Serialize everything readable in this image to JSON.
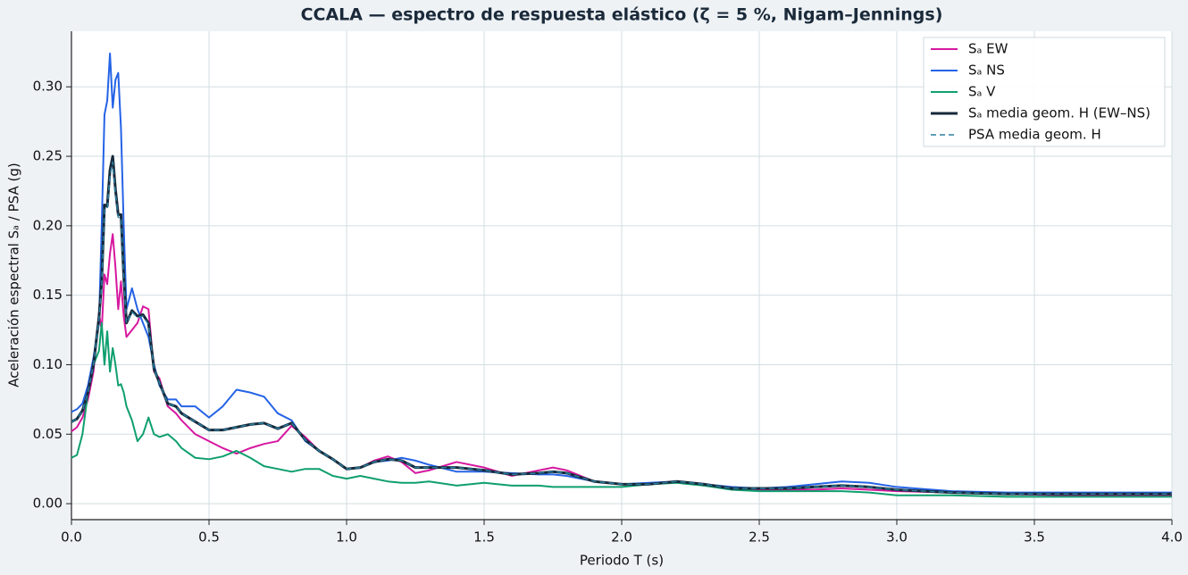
{
  "chart_data": {
    "type": "line",
    "title": "CCALA — espectro de respuesta elástico (ζ = 5 %, Nigam–Jennings)",
    "x_label": "Periodo T (s)",
    "y_label": "Aceleración espectral Sₐ / PSA (g)",
    "xlim": [
      0,
      4
    ],
    "ylim": [
      -0.0115,
      0.34
    ],
    "xticks": [
      {
        "value": 0,
        "label": "0.0"
      },
      0.5,
      {
        "value": 1,
        "label": "1.0"
      },
      1.5,
      {
        "value": 2,
        "label": "2.0"
      },
      2.5,
      {
        "value": 3,
        "label": "3.0"
      },
      3.5,
      {
        "value": 4,
        "label": "4.0"
      }
    ],
    "yticks": [
      {
        "value": 0,
        "label": "0.00"
      },
      0.05,
      {
        "value": 0.1,
        "label": "0.10"
      },
      0.15,
      {
        "value": 0.2,
        "label": "0.20"
      },
      0.25,
      {
        "value": 0.3,
        "label": "0.30"
      }
    ],
    "grid": true,
    "legend": "upper right",
    "x": [
      0,
      0.02,
      0.04,
      0.06,
      0.08,
      0.1,
      0.11,
      0.12,
      0.13,
      0.14,
      0.15,
      0.16,
      0.17,
      0.18,
      0.19,
      0.2,
      0.22,
      0.24,
      0.26,
      0.28,
      0.3,
      0.32,
      0.35,
      0.38,
      0.4,
      0.45,
      0.5,
      0.55,
      0.6,
      0.65,
      0.7,
      0.75,
      0.8,
      0.85,
      0.9,
      0.95,
      1.0,
      1.05,
      1.1,
      1.15,
      1.2,
      1.25,
      1.3,
      1.4,
      1.5,
      1.6,
      1.7,
      1.75,
      1.8,
      1.9,
      2.0,
      2.1,
      2.2,
      2.3,
      2.4,
      2.5,
      2.6,
      2.7,
      2.8,
      2.9,
      3.0,
      3.2,
      3.4,
      3.6,
      3.8,
      4.0
    ],
    "series": [
      {
        "name": "Sₐ EW",
        "color": "#d6189f",
        "linewidth": 2,
        "linestyle": "solid",
        "values": [
          0.052,
          0.055,
          0.062,
          0.075,
          0.095,
          0.137,
          0.125,
          0.165,
          0.158,
          0.18,
          0.194,
          0.17,
          0.14,
          0.16,
          0.135,
          0.12,
          0.125,
          0.13,
          0.142,
          0.14,
          0.095,
          0.09,
          0.07,
          0.065,
          0.06,
          0.05,
          0.045,
          0.04,
          0.036,
          0.04,
          0.043,
          0.045,
          0.056,
          0.048,
          0.038,
          0.032,
          0.025,
          0.026,
          0.031,
          0.034,
          0.03,
          0.022,
          0.024,
          0.03,
          0.026,
          0.02,
          0.024,
          0.026,
          0.024,
          0.016,
          0.014,
          0.014,
          0.016,
          0.013,
          0.011,
          0.01,
          0.01,
          0.01,
          0.011,
          0.01,
          0.009,
          0.008,
          0.007,
          0.006,
          0.006,
          0.006
        ]
      },
      {
        "name": "Sₐ NS",
        "color": "#2563e6",
        "linewidth": 2,
        "linestyle": "solid",
        "values": [
          0.066,
          0.068,
          0.072,
          0.085,
          0.105,
          0.13,
          0.2,
          0.28,
          0.29,
          0.324,
          0.285,
          0.305,
          0.31,
          0.27,
          0.2,
          0.14,
          0.155,
          0.14,
          0.13,
          0.12,
          0.1,
          0.085,
          0.075,
          0.075,
          0.07,
          0.07,
          0.062,
          0.07,
          0.082,
          0.08,
          0.077,
          0.065,
          0.06,
          0.045,
          0.038,
          0.032,
          0.025,
          0.026,
          0.03,
          0.031,
          0.033,
          0.031,
          0.028,
          0.023,
          0.023,
          0.022,
          0.021,
          0.021,
          0.02,
          0.016,
          0.014,
          0.015,
          0.016,
          0.014,
          0.012,
          0.011,
          0.012,
          0.014,
          0.016,
          0.015,
          0.012,
          0.009,
          0.008,
          0.008,
          0.008,
          0.008
        ]
      },
      {
        "name": "Sₐ V",
        "color": "#0f9f6e",
        "linewidth": 2,
        "linestyle": "solid",
        "values": [
          0.033,
          0.035,
          0.05,
          0.08,
          0.1,
          0.11,
          0.13,
          0.1,
          0.124,
          0.095,
          0.112,
          0.1,
          0.085,
          0.086,
          0.08,
          0.07,
          0.06,
          0.045,
          0.05,
          0.062,
          0.05,
          0.048,
          0.05,
          0.045,
          0.04,
          0.033,
          0.032,
          0.034,
          0.038,
          0.033,
          0.027,
          0.025,
          0.023,
          0.025,
          0.025,
          0.02,
          0.018,
          0.02,
          0.018,
          0.016,
          0.015,
          0.015,
          0.016,
          0.013,
          0.015,
          0.013,
          0.013,
          0.012,
          0.012,
          0.012,
          0.012,
          0.014,
          0.015,
          0.013,
          0.01,
          0.009,
          0.009,
          0.009,
          0.009,
          0.008,
          0.006,
          0.006,
          0.005,
          0.005,
          0.005,
          0.005
        ]
      },
      {
        "name": "Sₐ media geom. H (EW–NS)",
        "color": "#17293a",
        "linewidth": 3,
        "linestyle": "solid",
        "values": [
          0.059,
          0.061,
          0.067,
          0.08,
          0.1,
          0.134,
          0.16,
          0.215,
          0.214,
          0.24,
          0.25,
          0.226,
          0.208,
          0.208,
          0.164,
          0.13,
          0.139,
          0.135,
          0.136,
          0.13,
          0.097,
          0.087,
          0.072,
          0.07,
          0.065,
          0.059,
          0.053,
          0.053,
          0.055,
          0.057,
          0.058,
          0.054,
          0.058,
          0.046,
          0.038,
          0.032,
          0.025,
          0.026,
          0.03,
          0.032,
          0.031,
          0.026,
          0.026,
          0.026,
          0.024,
          0.021,
          0.022,
          0.023,
          0.022,
          0.016,
          0.014,
          0.014,
          0.016,
          0.014,
          0.011,
          0.011,
          0.011,
          0.012,
          0.013,
          0.012,
          0.01,
          0.008,
          0.007,
          0.007,
          0.007,
          0.007
        ]
      },
      {
        "name": "PSA media geom. H",
        "color": "#2b7fa0",
        "linewidth": 1.5,
        "linestyle": "dashed",
        "values": [
          0.059,
          0.061,
          0.067,
          0.08,
          0.1,
          0.133,
          0.158,
          0.212,
          0.212,
          0.236,
          0.246,
          0.223,
          0.206,
          0.206,
          0.163,
          0.13,
          0.138,
          0.134,
          0.135,
          0.129,
          0.097,
          0.087,
          0.072,
          0.07,
          0.065,
          0.059,
          0.053,
          0.053,
          0.055,
          0.057,
          0.058,
          0.054,
          0.058,
          0.046,
          0.038,
          0.032,
          0.025,
          0.026,
          0.03,
          0.032,
          0.031,
          0.026,
          0.026,
          0.026,
          0.024,
          0.021,
          0.022,
          0.023,
          0.022,
          0.016,
          0.014,
          0.014,
          0.016,
          0.014,
          0.011,
          0.011,
          0.011,
          0.012,
          0.013,
          0.012,
          0.01,
          0.008,
          0.007,
          0.007,
          0.007,
          0.007
        ]
      }
    ]
  }
}
